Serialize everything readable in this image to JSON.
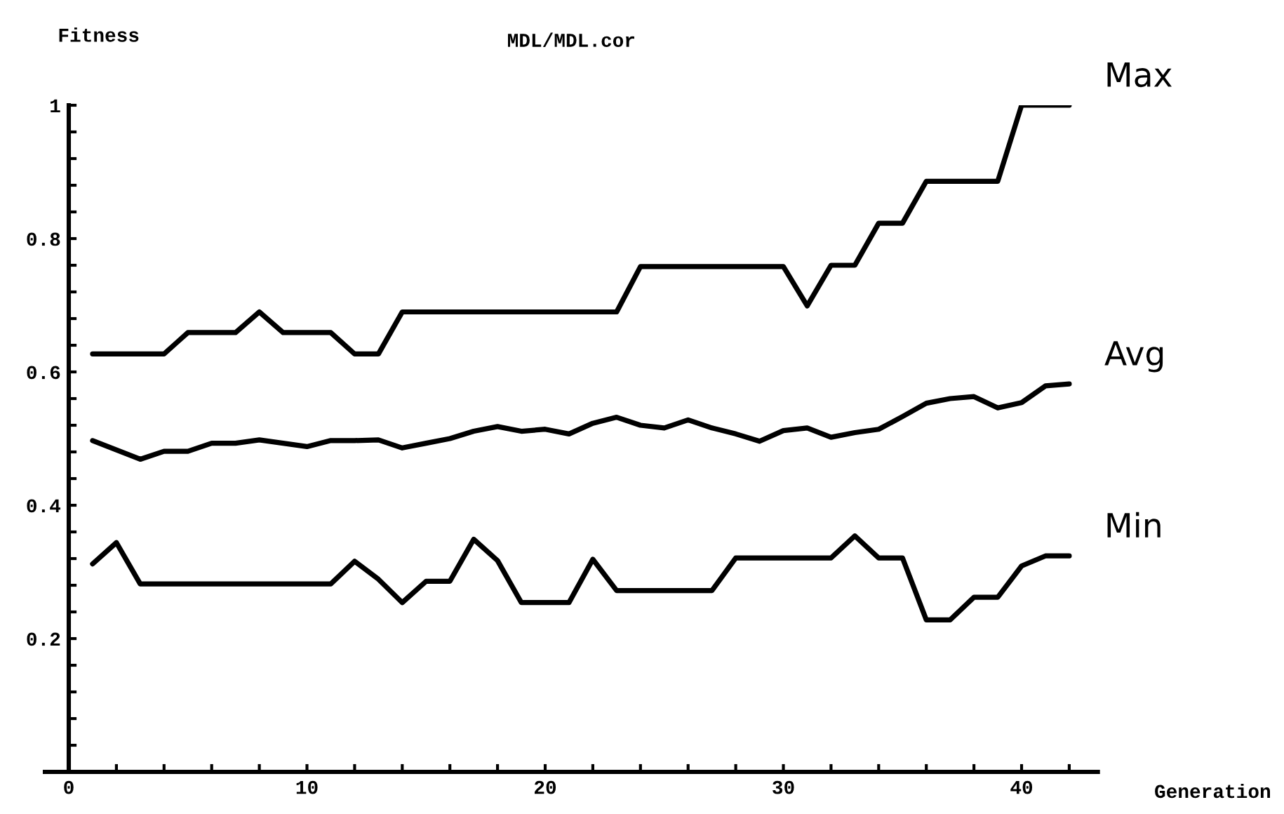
{
  "chart_data": {
    "type": "line",
    "title": "MDL/MDL.cor",
    "xlabel": "Generation",
    "ylabel": "Fitness",
    "x": [
      1,
      2,
      3,
      4,
      5,
      6,
      7,
      8,
      9,
      10,
      11,
      12,
      13,
      14,
      15,
      16,
      17,
      18,
      19,
      20,
      21,
      22,
      23,
      24,
      25,
      26,
      27,
      28,
      29,
      30,
      31,
      32,
      33,
      34,
      35,
      36,
      37,
      38,
      39,
      40,
      41,
      42
    ],
    "series": [
      {
        "name": "Max",
        "color": "#000000",
        "values": [
          0.627,
          0.627,
          0.627,
          0.627,
          0.659,
          0.659,
          0.659,
          0.69,
          0.659,
          0.659,
          0.659,
          0.627,
          0.627,
          0.69,
          0.69,
          0.69,
          0.69,
          0.69,
          0.69,
          0.69,
          0.69,
          0.69,
          0.69,
          0.758,
          0.758,
          0.758,
          0.758,
          0.758,
          0.758,
          0.758,
          0.699,
          0.76,
          0.76,
          0.823,
          0.823,
          0.886,
          0.886,
          0.886,
          0.886,
          1.0,
          1.0,
          1.0
        ]
      },
      {
        "name": "Avg",
        "color": "#000000",
        "values": [
          0.497,
          0.483,
          0.469,
          0.481,
          0.481,
          0.493,
          0.493,
          0.498,
          0.493,
          0.488,
          0.497,
          0.497,
          0.498,
          0.486,
          0.493,
          0.5,
          0.511,
          0.518,
          0.511,
          0.514,
          0.507,
          0.523,
          0.532,
          0.52,
          0.516,
          0.528,
          0.516,
          0.507,
          0.496,
          0.512,
          0.516,
          0.502,
          0.509,
          0.514,
          0.533,
          0.553,
          0.56,
          0.563,
          0.546,
          0.554,
          0.579,
          0.582
        ]
      },
      {
        "name": "Min",
        "color": "#000000",
        "values": [
          0.312,
          0.344,
          0.282,
          0.282,
          0.282,
          0.282,
          0.282,
          0.282,
          0.282,
          0.282,
          0.282,
          0.316,
          0.289,
          0.254,
          0.286,
          0.286,
          0.349,
          0.317,
          0.254,
          0.254,
          0.254,
          0.319,
          0.272,
          0.272,
          0.272,
          0.272,
          0.272,
          0.321,
          0.321,
          0.321,
          0.321,
          0.321,
          0.354,
          0.321,
          0.321,
          0.228,
          0.228,
          0.262,
          0.262,
          0.309,
          0.324,
          0.324
        ]
      }
    ],
    "xlim": [
      -1,
      43.2
    ],
    "ylim": [
      0,
      1
    ],
    "xticks": [
      {
        "value": 0,
        "label": "0"
      },
      {
        "value": 2,
        "label": null
      },
      {
        "value": 4,
        "label": null
      },
      {
        "value": 6,
        "label": null
      },
      {
        "value": 8,
        "label": null
      },
      {
        "value": 10,
        "label": "10"
      },
      {
        "value": 12,
        "label": null
      },
      {
        "value": 14,
        "label": null
      },
      {
        "value": 16,
        "label": null
      },
      {
        "value": 18,
        "label": null
      },
      {
        "value": 20,
        "label": "20"
      },
      {
        "value": 22,
        "label": null
      },
      {
        "value": 24,
        "label": null
      },
      {
        "value": 26,
        "label": null
      },
      {
        "value": 28,
        "label": null
      },
      {
        "value": 30,
        "label": "30"
      },
      {
        "value": 32,
        "label": null
      },
      {
        "value": 34,
        "label": null
      },
      {
        "value": 36,
        "label": null
      },
      {
        "value": 38,
        "label": null
      },
      {
        "value": 40,
        "label": "40"
      },
      {
        "value": 42,
        "label": null
      }
    ],
    "yticks": [
      {
        "value": 0.04,
        "label": null
      },
      {
        "value": 0.08,
        "label": null
      },
      {
        "value": 0.12,
        "label": null
      },
      {
        "value": 0.16,
        "label": null
      },
      {
        "value": 0.2,
        "label": "0.2"
      },
      {
        "value": 0.24,
        "label": null
      },
      {
        "value": 0.28,
        "label": null
      },
      {
        "value": 0.32,
        "label": null
      },
      {
        "value": 0.36,
        "label": null
      },
      {
        "value": 0.4,
        "label": "0.4"
      },
      {
        "value": 0.44,
        "label": null
      },
      {
        "value": 0.48,
        "label": null
      },
      {
        "value": 0.52,
        "label": null
      },
      {
        "value": 0.56,
        "label": null
      },
      {
        "value": 0.6,
        "label": "0.6"
      },
      {
        "value": 0.64,
        "label": null
      },
      {
        "value": 0.68,
        "label": null
      },
      {
        "value": 0.72,
        "label": null
      },
      {
        "value": 0.76,
        "label": null
      },
      {
        "value": 0.8,
        "label": "0.8"
      },
      {
        "value": 0.84,
        "label": null
      },
      {
        "value": 0.88,
        "label": null
      },
      {
        "value": 0.92,
        "label": null
      },
      {
        "value": 0.96,
        "label": null
      },
      {
        "value": 1,
        "label": "1"
      }
    ],
    "grid": false,
    "legend": false,
    "marker": "none",
    "line_style": "solid"
  }
}
